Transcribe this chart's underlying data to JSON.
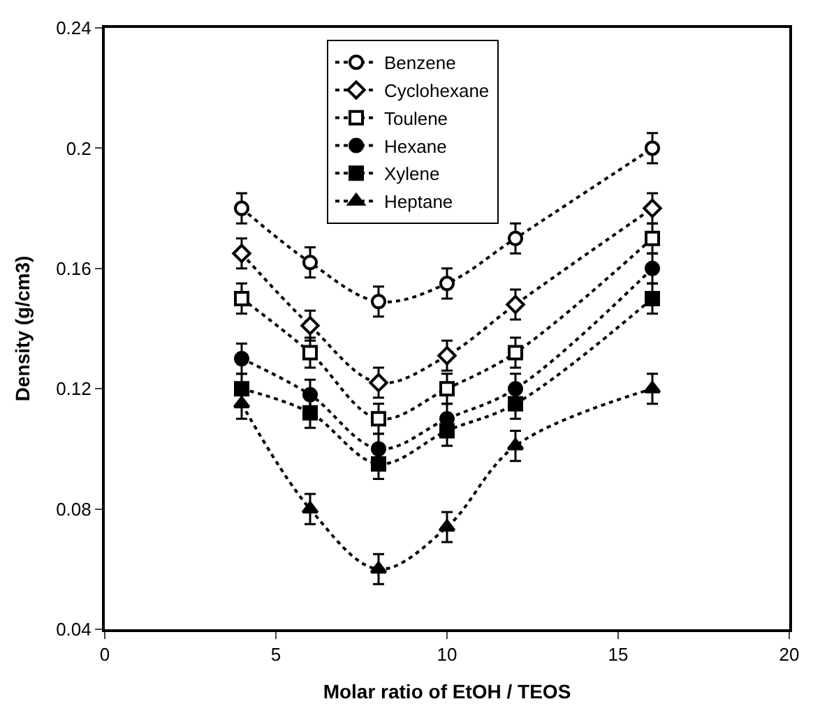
{
  "chart_data": {
    "type": "line",
    "xlabel": "Molar ratio of EtOH / TEOS",
    "ylabel": "Density (g/cm3)",
    "x": [
      4,
      6,
      8,
      10,
      12,
      16
    ],
    "xlim": [
      0,
      20
    ],
    "xticks": [
      0,
      5,
      10,
      15,
      20
    ],
    "ylim": [
      0.04,
      0.24
    ],
    "yticks": [
      0.04,
      0.08,
      0.12,
      0.16,
      0.2,
      0.24
    ],
    "legend": "top",
    "line_style": "dotted",
    "series": [
      {
        "name": "Benzene",
        "color": "#000000",
        "marker": "circle-open",
        "values": [
          0.18,
          0.162,
          0.149,
          0.155,
          0.17,
          0.2
        ],
        "errors": [
          0.005,
          0.005,
          0.005,
          0.005,
          0.005,
          0.005
        ]
      },
      {
        "name": "Cyclohexane",
        "color": "#000000",
        "marker": "diamond-open",
        "values": [
          0.165,
          0.141,
          0.122,
          0.131,
          0.148,
          0.18
        ],
        "errors": [
          0.005,
          0.005,
          0.005,
          0.005,
          0.005,
          0.005
        ]
      },
      {
        "name": "Toulene",
        "color": "#000000",
        "marker": "square-open",
        "values": [
          0.15,
          0.132,
          0.11,
          0.12,
          0.132,
          0.17
        ],
        "errors": [
          0.005,
          0.005,
          0.005,
          0.005,
          0.005,
          0.005
        ]
      },
      {
        "name": "Hexane",
        "color": "#000000",
        "marker": "circle",
        "values": [
          0.13,
          0.118,
          0.1,
          0.11,
          0.12,
          0.16
        ],
        "errors": [
          0.005,
          0.005,
          0.005,
          0.005,
          0.005,
          0.005
        ]
      },
      {
        "name": "Xylene",
        "color": "#000000",
        "marker": "square",
        "values": [
          0.12,
          0.112,
          0.095,
          0.106,
          0.115,
          0.15
        ],
        "errors": [
          0.005,
          0.005,
          0.005,
          0.005,
          0.005,
          0.005
        ]
      },
      {
        "name": "Heptane",
        "color": "#000000",
        "marker": "triangle",
        "values": [
          0.115,
          0.08,
          0.06,
          0.074,
          0.101,
          0.12
        ],
        "errors": [
          0.005,
          0.005,
          0.005,
          0.005,
          0.005,
          0.005
        ]
      }
    ]
  }
}
